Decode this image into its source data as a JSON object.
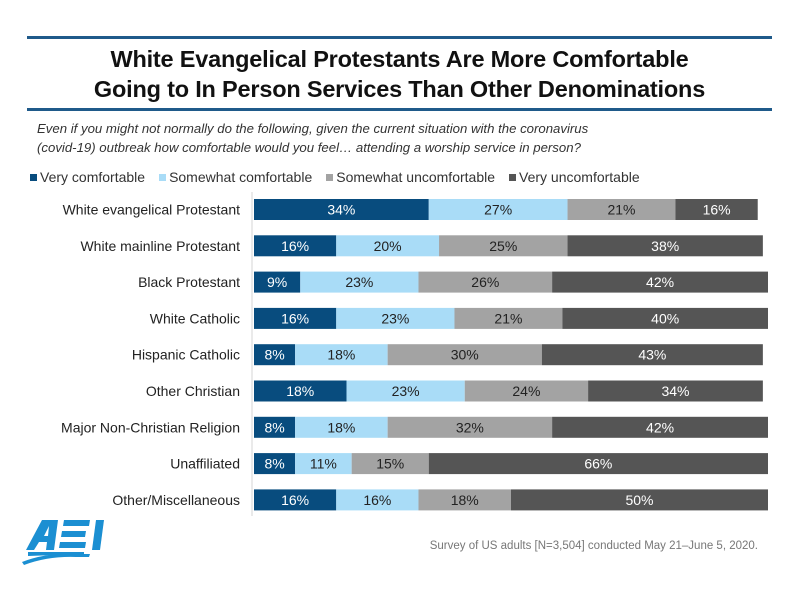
{
  "chart_data": {
    "type": "bar",
    "orientation": "horizontal",
    "stacked": true,
    "title": "White Evangelical Protestants Are More Comfortable Going to In Person Services Than Other Denominations",
    "title_lines": [
      "White Evangelical Protestants Are More Comfortable",
      "Going to In Person Services Than Other Denominations"
    ],
    "subtitle_lines": [
      "Even if you might not normally do the following, given the current situation with the coronavirus",
      "(covid-19) outbreak how comfortable would you feel… attending a worship service in person?"
    ],
    "xlabel": "",
    "ylabel": "",
    "xlim": [
      0,
      100
    ],
    "value_suffix": "%",
    "grid": false,
    "legend_position": "top",
    "categories": [
      "White evangelical Protestant",
      "White mainline Protestant",
      "Black Protestant",
      "White Catholic",
      "Hispanic Catholic",
      "Other Christian",
      "Major Non-Christian Religion",
      "Unaffiliated",
      "Other/Miscellaneous"
    ],
    "series": [
      {
        "name": "Very comfortable",
        "color": "#084c7e",
        "text_color": "#ffffff",
        "values": [
          34,
          16,
          9,
          16,
          8,
          18,
          8,
          8,
          16
        ]
      },
      {
        "name": "Somewhat comfortable",
        "color": "#a9dcf7",
        "text_color": "#222222",
        "values": [
          27,
          20,
          23,
          23,
          18,
          23,
          18,
          11,
          16
        ]
      },
      {
        "name": "Somewhat uncomfortable",
        "color": "#a3a3a3",
        "text_color": "#222222",
        "values": [
          21,
          25,
          26,
          21,
          30,
          24,
          32,
          15,
          18
        ]
      },
      {
        "name": "Very uncomfortable",
        "color": "#555555",
        "text_color": "#ffffff",
        "values": [
          16,
          38,
          42,
          40,
          43,
          34,
          42,
          66,
          50
        ]
      }
    ],
    "source": "Survey of US adults [N=3,504] conducted May 21–June 5, 2020."
  },
  "branding": {
    "logo_text": "AEI",
    "logo_color": "#1b8fd2",
    "rule_color": "#1f5a8a"
  }
}
